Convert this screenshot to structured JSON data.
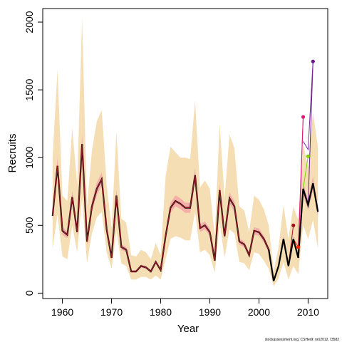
{
  "chart_data": {
    "type": "line",
    "xlabel": "Year",
    "ylabel": "Recruits",
    "xlim": [
      1956,
      2014
    ],
    "ylim": [
      -40,
      2100
    ],
    "x_ticks": [
      1960,
      1970,
      1980,
      1990,
      2000,
      2010
    ],
    "y_ticks": [
      0,
      500,
      1000,
      1500,
      2000
    ],
    "grid": false,
    "legend": "none",
    "footnote": "stockassessment.org, CSHer9: nro2012, r3582",
    "colors": {
      "band": "#f5deb3",
      "band_retro": "#f4a7a7",
      "main_line": "#000000",
      "retro_line": "#a0202a"
    },
    "x": [
      1958,
      1959,
      1960,
      1961,
      1962,
      1963,
      1964,
      1965,
      1966,
      1967,
      1968,
      1969,
      1970,
      1971,
      1972,
      1973,
      1974,
      1975,
      1976,
      1977,
      1978,
      1979,
      1980,
      1981,
      1982,
      1983,
      1984,
      1985,
      1986,
      1987,
      1988,
      1989,
      1990,
      1991,
      1992,
      1993,
      1994,
      1995,
      1996,
      1997,
      1998,
      1999,
      2000,
      2001,
      2002,
      2003,
      2004,
      2005,
      2006,
      2007,
      2008,
      2009,
      2010,
      2011,
      2012
    ],
    "series": [
      {
        "values": [
          570,
          940,
          460,
          430,
          710,
          450,
          1100,
          380,
          640,
          770,
          840,
          470,
          260,
          720,
          340,
          320,
          160,
          160,
          200,
          190,
          160,
          230,
          170,
          420,
          630,
          680,
          660,
          630,
          630,
          870,
          480,
          500,
          450,
          240,
          760,
          420,
          700,
          640,
          380,
          360,
          280,
          460,
          450,
          400,
          320,
          90,
          200,
          400,
          200,
          400,
          260,
          770,
          650,
          810,
          600
        ],
        "lower": [
          330,
          580,
          270,
          250,
          500,
          300,
          700,
          220,
          440,
          560,
          600,
          300,
          180,
          460,
          220,
          200,
          100,
          100,
          120,
          120,
          100,
          130,
          100,
          250,
          400,
          420,
          410,
          390,
          390,
          600,
          300,
          320,
          280,
          150,
          520,
          260,
          470,
          440,
          230,
          220,
          170,
          300,
          290,
          240,
          180,
          50,
          110,
          230,
          100,
          200,
          140,
          500,
          400,
          540,
          330
        ],
        "upper": [
          1000,
          1650,
          720,
          680,
          1220,
          800,
          2030,
          640,
          1050,
          1270,
          1350,
          800,
          480,
          1190,
          550,
          520,
          280,
          270,
          320,
          300,
          250,
          370,
          280,
          860,
          1080,
          1040,
          1000,
          1000,
          990,
          1420,
          780,
          830,
          770,
          420,
          1250,
          700,
          1170,
          1070,
          640,
          610,
          450,
          720,
          690,
          620,
          500,
          160,
          340,
          650,
          400,
          640,
          540,
          1100,
          930,
          1330,
          1080
        ]
      }
    ],
    "retro_points": [
      {
        "x": 2007,
        "y": 500,
        "color": "#a01020"
      },
      {
        "x": 2008,
        "y": 340,
        "color": "#ff2200"
      },
      {
        "x": 2009,
        "y": 1300,
        "color": "#e0187a"
      },
      {
        "x": 2010,
        "y": 1010,
        "color": "#7fd000"
      },
      {
        "x": 2011,
        "y": 1710,
        "color": "#6a1a8a"
      }
    ]
  }
}
